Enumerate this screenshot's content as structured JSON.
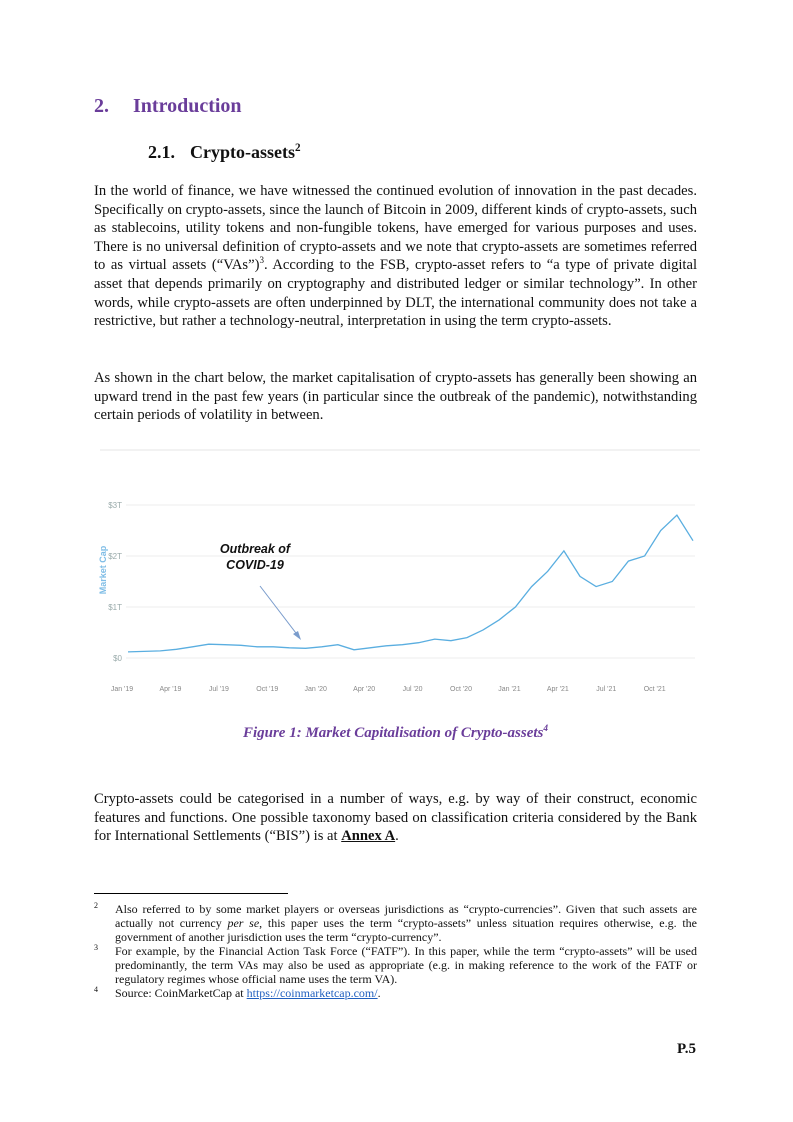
{
  "heading": {
    "number": "2.",
    "title": "Introduction"
  },
  "subheading": {
    "number": "2.1.",
    "title": "Crypto-assets",
    "sup": "2"
  },
  "paragraphs": [
    {
      "runs": [
        {
          "text": "In the world of finance, we have witnessed the continued evolution of innovation in the past decades.  Specifically on crypto-assets, since the launch of Bitcoin in 2009, different kinds of crypto-assets, such as stablecoins, utility tokens and non-fungible tokens, have emerged for various purposes and uses.  There is no universal definition of crypto-assets and we note that crypto-assets are sometimes referred to as virtual assets (“VAs”)"
        },
        {
          "sup": "3"
        },
        {
          "text": ".  According to the FSB, crypto-asset refers to “a type of private digital asset that depends primarily on cryptography and distributed ledger or similar technology”.  In other words, while crypto-assets are often underpinned by DLT, the international community does not take a restrictive, but rather a technology-neutral, interpretation in using the term crypto-assets."
        }
      ]
    },
    {
      "runs": [
        {
          "text": "As shown in the chart below, the market capitalisation of crypto-assets has generally been showing an upward trend in the past few years (in particular since the outbreak of the pandemic), notwithstanding certain periods of volatility in between."
        }
      ]
    }
  ],
  "figure": {
    "chart_data": {
      "type": "line",
      "y_label": "Market Cap",
      "categories": [
        "Jan '19",
        null,
        null,
        "Apr '19",
        null,
        null,
        "Jul '19",
        null,
        null,
        "Oct '19",
        null,
        null,
        "Jan '20",
        null,
        null,
        "Apr '20",
        null,
        null,
        "Jul '20",
        null,
        null,
        "Oct '20",
        null,
        null,
        "Jan '21",
        null,
        null,
        "Apr '21",
        null,
        null,
        "Jul '21",
        null,
        null,
        "Oct '21",
        null,
        null
      ],
      "series": [
        {
          "name": "Market Cap",
          "color": "#5aaee0",
          "values": [
            0.12,
            0.13,
            0.14,
            0.17,
            0.22,
            0.27,
            0.26,
            0.25,
            0.22,
            0.22,
            0.2,
            0.19,
            0.22,
            0.26,
            0.16,
            0.2,
            0.24,
            0.26,
            0.3,
            0.37,
            0.34,
            0.4,
            0.55,
            0.75,
            1.0,
            1.4,
            1.7,
            2.1,
            1.6,
            1.4,
            1.5,
            1.9,
            2.0,
            2.5,
            2.8,
            2.3
          ]
        }
      ],
      "ylim": [
        0,
        3
      ],
      "yticks": [
        {
          "value": 0,
          "label": "$0"
        },
        {
          "value": 1,
          "label": "$1T"
        },
        {
          "value": 2,
          "label": "$2T"
        },
        {
          "value": 3,
          "label": "$3T"
        }
      ],
      "grid": true,
      "annotation": [
        "Outbreak of",
        "COVID-19"
      ]
    },
    "caption": "Figure 1: Market Capitalisation of Crypto-assets",
    "caption_sup": "4"
  },
  "paragraph_after": {
    "runs": [
      {
        "text": "Crypto-assets could be categorised in a number of ways, e.g. by way of their construct, economic features and functions.  One possible taxonomy based on classification criteria considered by the Bank for International Settlements (“BIS”) is at "
      },
      {
        "strong": "Annex A"
      },
      {
        "text": "."
      }
    ]
  },
  "footnotes": [
    {
      "number": "2",
      "runs": [
        {
          "text": "Also referred to by some market players or overseas jurisdictions as “crypto-currencies”.  Given that such assets are actually not currency "
        },
        {
          "em": "per se"
        },
        {
          "text": ", this paper uses the term “crypto-assets” unless situation requires otherwise, e.g. the government of another jurisdiction uses the term “crypto-currency”."
        }
      ]
    },
    {
      "number": "3",
      "runs": [
        {
          "text": "For example, by the Financial Action Task Force (“FATF”).  In this paper, while the term “crypto-assets” will be used predominantly, the term VAs may also be used as appropriate (e.g. in making reference to the work of the FATF or regulatory regimes whose official name uses the term VA)."
        }
      ]
    },
    {
      "number": "4",
      "runs": [
        {
          "text": "Source: CoinMarketCap at "
        },
        {
          "link": "https://coinmarketcap.com/"
        },
        {
          "text": "."
        }
      ]
    }
  ],
  "page_number": "P.5"
}
